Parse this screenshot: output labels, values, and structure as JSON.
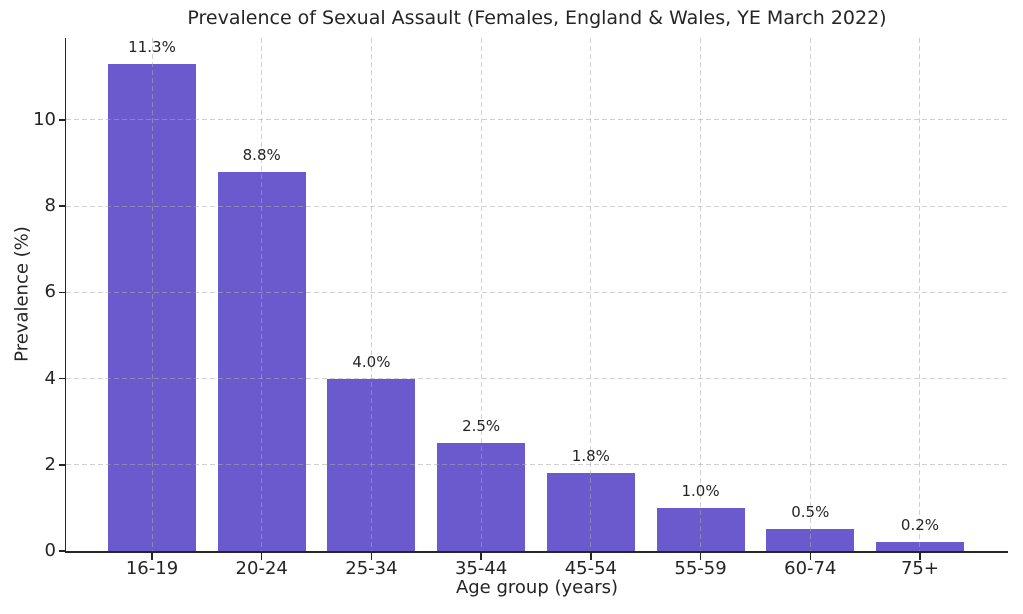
{
  "chart_data": {
    "type": "bar",
    "title": "Prevalence of Sexual Assault (Females, England & Wales, YE March 2022)",
    "xlabel": "Age group (years)",
    "ylabel": "Prevalence (%)",
    "categories": [
      "16-19",
      "20-24",
      "25-34",
      "35-44",
      "45-54",
      "55-59",
      "60-74",
      "75+"
    ],
    "values": [
      11.3,
      8.8,
      4.0,
      2.5,
      1.8,
      1.0,
      0.5,
      0.2
    ],
    "bar_labels": [
      "11.3%",
      "8.8%",
      "4.0%",
      "2.5%",
      "1.8%",
      "1.0%",
      "0.5%",
      "0.2%"
    ],
    "yticks": [
      0,
      2,
      4,
      6,
      8,
      10
    ],
    "ytick_labels": [
      "0",
      "2",
      "4",
      "6",
      "8",
      "10"
    ],
    "ylim": [
      0,
      11.9
    ],
    "grid": true,
    "grid_style": "dashed",
    "legend": null,
    "colors": {
      "bar": "#6a5acd",
      "grid": "#ababab",
      "axis": "#262626",
      "text": "#252525",
      "background": "#ffffff"
    }
  }
}
